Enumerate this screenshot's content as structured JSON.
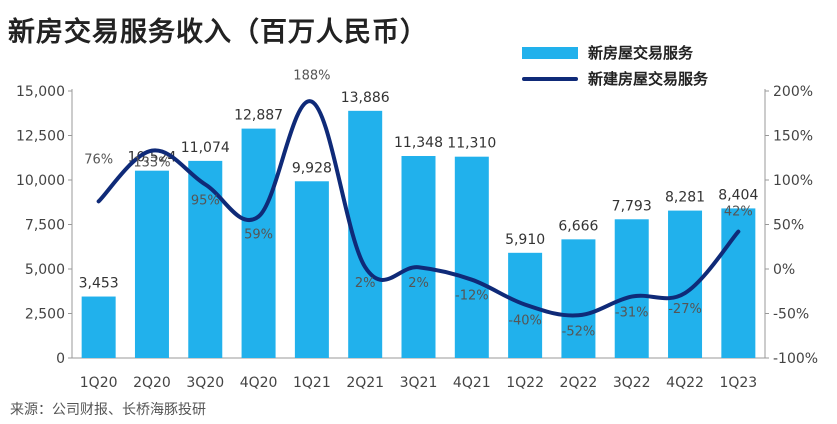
{
  "title": "新房交易服务收入（百万人民币）",
  "source": "来源：公司财报、长桥海豚投研",
  "colors": {
    "bar": "#21b1ec",
    "line": "#0f2a78"
  },
  "chart_data": {
    "type": "bar",
    "title": "新房交易服务收入（百万人民币）",
    "categories": [
      "1Q20",
      "2Q20",
      "3Q20",
      "4Q20",
      "1Q21",
      "2Q21",
      "3Q21",
      "4Q21",
      "1Q22",
      "2Q22",
      "3Q22",
      "4Q22",
      "1Q23"
    ],
    "series": [
      {
        "name": "新房屋交易服务",
        "type": "bar",
        "axis": "left",
        "values": [
          3453,
          10524,
          11074,
          12887,
          9928,
          13886,
          11348,
          11310,
          5910,
          6666,
          7793,
          8281,
          8404
        ],
        "labels": [
          "3,453",
          "10,524",
          "11,074",
          "12,887",
          "9,928",
          "13,886",
          "11,348",
          "11,310",
          "5,910",
          "6,666",
          "7,793",
          "8,281",
          "8,404"
        ]
      },
      {
        "name": "新建房屋交易服务",
        "type": "line",
        "axis": "right",
        "values": [
          76,
          133,
          95,
          59,
          188,
          2,
          2,
          -12,
          -40,
          -52,
          -31,
          -27,
          42
        ],
        "labels": [
          "76%",
          "133%",
          "95%",
          "59%",
          "188%",
          "2%",
          "2%",
          "-12%",
          "-40%",
          "-52%",
          "-31%",
          "-27%",
          "42%"
        ]
      }
    ],
    "left_axis": {
      "min": 0,
      "max": 15000,
      "ticks": [
        0,
        2500,
        5000,
        7500,
        10000,
        12500,
        15000
      ],
      "tick_labels": [
        "0",
        "2,500",
        "5,000",
        "7,500",
        "10,000",
        "12,500",
        "15,000"
      ]
    },
    "right_axis": {
      "min": -100,
      "max": 200,
      "ticks": [
        -100,
        -50,
        0,
        50,
        100,
        150,
        200
      ],
      "tick_labels": [
        "-100%",
        "-50%",
        "0%",
        "50%",
        "100%",
        "150%",
        "200%"
      ]
    },
    "legend": "top-right",
    "grid": false
  }
}
